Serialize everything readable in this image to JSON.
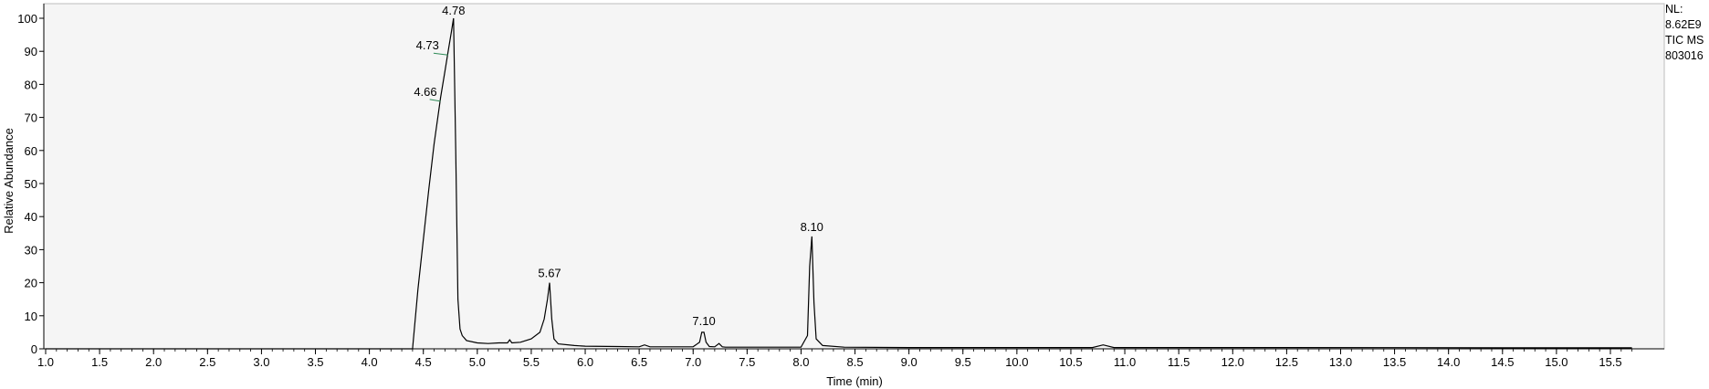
{
  "info": {
    "nl_label": "NL:",
    "nl_value": "8.62E9",
    "scan": "TIC  MS",
    "file": "803016"
  },
  "chart_data": {
    "type": "line",
    "title": "",
    "xlabel": "Time (min)",
    "ylabel": "Relative Abundance",
    "xlim": [
      1.0,
      15.7
    ],
    "ylim": [
      0,
      100
    ],
    "grid": false,
    "xticks": [
      1.0,
      1.5,
      2.0,
      2.5,
      3.0,
      3.5,
      4.0,
      4.5,
      5.0,
      5.5,
      6.0,
      6.5,
      7.0,
      7.5,
      8.0,
      8.5,
      9.0,
      9.5,
      10.0,
      10.5,
      11.0,
      11.5,
      12.0,
      12.5,
      13.0,
      13.5,
      14.0,
      14.5,
      15.0,
      15.5
    ],
    "xtick_labels": [
      "1.0",
      "1.5",
      "2.0",
      "2.5",
      "3.0",
      "3.5",
      "4.0",
      "4.5",
      "5.0",
      "5.5",
      "6.0",
      "6.5",
      "7.0",
      "7.5",
      "8.0",
      "8.5",
      "9.0",
      "9.5",
      "10.0",
      "10.5",
      "11.0",
      "11.5",
      "12.0",
      "12.5",
      "13.0",
      "13.5",
      "14.0",
      "14.5",
      "15.0",
      "15.5"
    ],
    "yticks": [
      0,
      10,
      20,
      30,
      40,
      50,
      60,
      70,
      80,
      90,
      100
    ],
    "ytick_labels": [
      "0",
      "10",
      "20",
      "30",
      "40",
      "50",
      "60",
      "70",
      "80",
      "90",
      "100"
    ],
    "series": [
      {
        "x": [
          1.0,
          4.4,
          4.45,
          4.5,
          4.55,
          4.6,
          4.66,
          4.7,
          4.73,
          4.76,
          4.78,
          4.8,
          4.82,
          4.84,
          4.86,
          4.9,
          5.0,
          5.1,
          5.2,
          5.28,
          5.3,
          5.32,
          5.4,
          5.5,
          5.58,
          5.62,
          5.65,
          5.67,
          5.69,
          5.71,
          5.75,
          5.9,
          6.0,
          6.3,
          6.5,
          6.55,
          6.6,
          7.0,
          7.06,
          7.08,
          7.1,
          7.12,
          7.15,
          7.2,
          7.24,
          7.27,
          7.3,
          7.5,
          8.0,
          8.06,
          8.08,
          8.1,
          8.12,
          8.14,
          8.2,
          8.4,
          9.0,
          10.0,
          10.7,
          10.8,
          10.9,
          11.5,
          12.5,
          13.5,
          14.5,
          15.7
        ],
        "y": [
          0,
          0,
          18,
          33,
          48,
          62,
          76,
          84,
          90,
          96,
          100,
          60,
          15,
          6,
          4,
          2.5,
          1.8,
          1.6,
          1.8,
          1.8,
          2.7,
          1.8,
          2,
          3,
          5,
          9,
          15,
          20,
          9,
          3,
          1.5,
          1,
          0.8,
          0.7,
          0.6,
          1.2,
          0.6,
          0.6,
          2,
          5,
          5,
          2,
          0.7,
          0.6,
          1.6,
          0.6,
          0.5,
          0.5,
          0.5,
          4,
          25,
          34,
          14,
          3,
          1,
          0.5,
          0.4,
          0.4,
          0.4,
          1.2,
          0.4,
          0.4,
          0.4,
          0.35,
          0.3,
          0.3
        ]
      }
    ],
    "annotations": [
      {
        "label": "4.78",
        "x": 4.78,
        "y": 100
      },
      {
        "label": "4.73",
        "x": 4.73,
        "y": 90
      },
      {
        "label": "4.66",
        "x": 4.66,
        "y": 76
      },
      {
        "label": "5.67",
        "x": 5.67,
        "y": 20
      },
      {
        "label": "7.10",
        "x": 7.1,
        "y": 5
      },
      {
        "label": "8.10",
        "x": 8.1,
        "y": 34
      }
    ]
  }
}
